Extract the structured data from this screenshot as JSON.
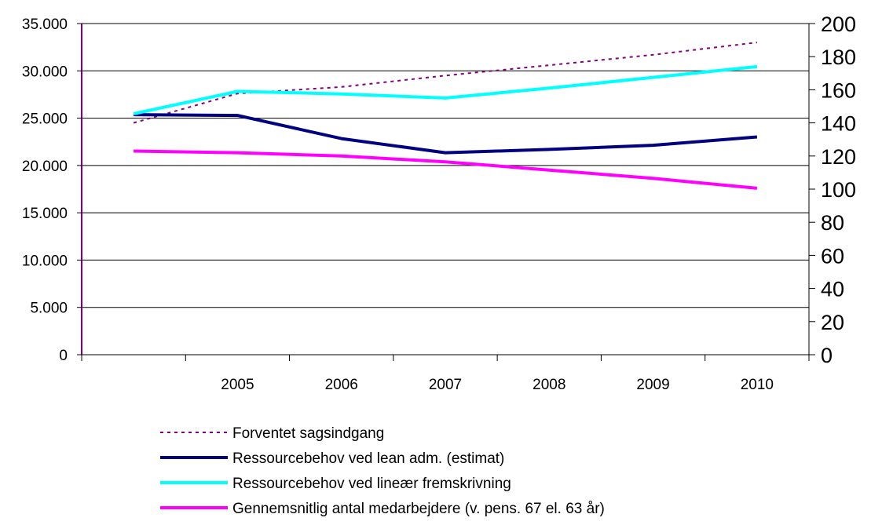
{
  "chart_data": {
    "type": "line",
    "title": "",
    "xlabel": "",
    "ylabel": "",
    "categories": [
      "",
      "2005",
      "2006",
      "2007",
      "2008",
      "2009",
      "2010"
    ],
    "y_left": {
      "min": 0,
      "max": 35000,
      "step": 5000,
      "tick_labels": [
        "0",
        "5.000",
        "10.000",
        "15.000",
        "20.000",
        "25.000",
        "30.000",
        "35.000"
      ]
    },
    "y_right": {
      "min": 0,
      "max": 200,
      "step": 20,
      "tick_labels": [
        "0",
        "20",
        "40",
        "60",
        "80",
        "100",
        "120",
        "140",
        "160",
        "180",
        "200"
      ]
    },
    "grid": "horizontal",
    "legend_position": "bottom",
    "series": [
      {
        "name": "Forventet sagsindgang",
        "axis": "left",
        "style": "dotted",
        "color": "#800080",
        "values": [
          24500,
          27600,
          28300,
          29500,
          30600,
          31700,
          33000
        ]
      },
      {
        "name": "Ressourcebehov ved lean adm. (estimat)",
        "axis": "right",
        "style": "solid",
        "color": "#000080",
        "values": [
          145,
          144.5,
          130.5,
          122,
          124,
          126.5,
          131.5
        ]
      },
      {
        "name": "Ressourcebehov ved lineær fremskrivning",
        "axis": "right",
        "style": "solid",
        "color": "#00FFFF",
        "values": [
          145.5,
          159,
          157.5,
          155,
          161,
          167.5,
          174
        ]
      },
      {
        "name": "Gennemsnitlig antal medarbejdere (v. pens. 67 el. 63 år)",
        "axis": "right",
        "style": "solid",
        "color": "#FF00FF",
        "values": [
          123,
          122,
          120,
          116.5,
          111.5,
          106.5,
          100.5
        ]
      }
    ]
  }
}
